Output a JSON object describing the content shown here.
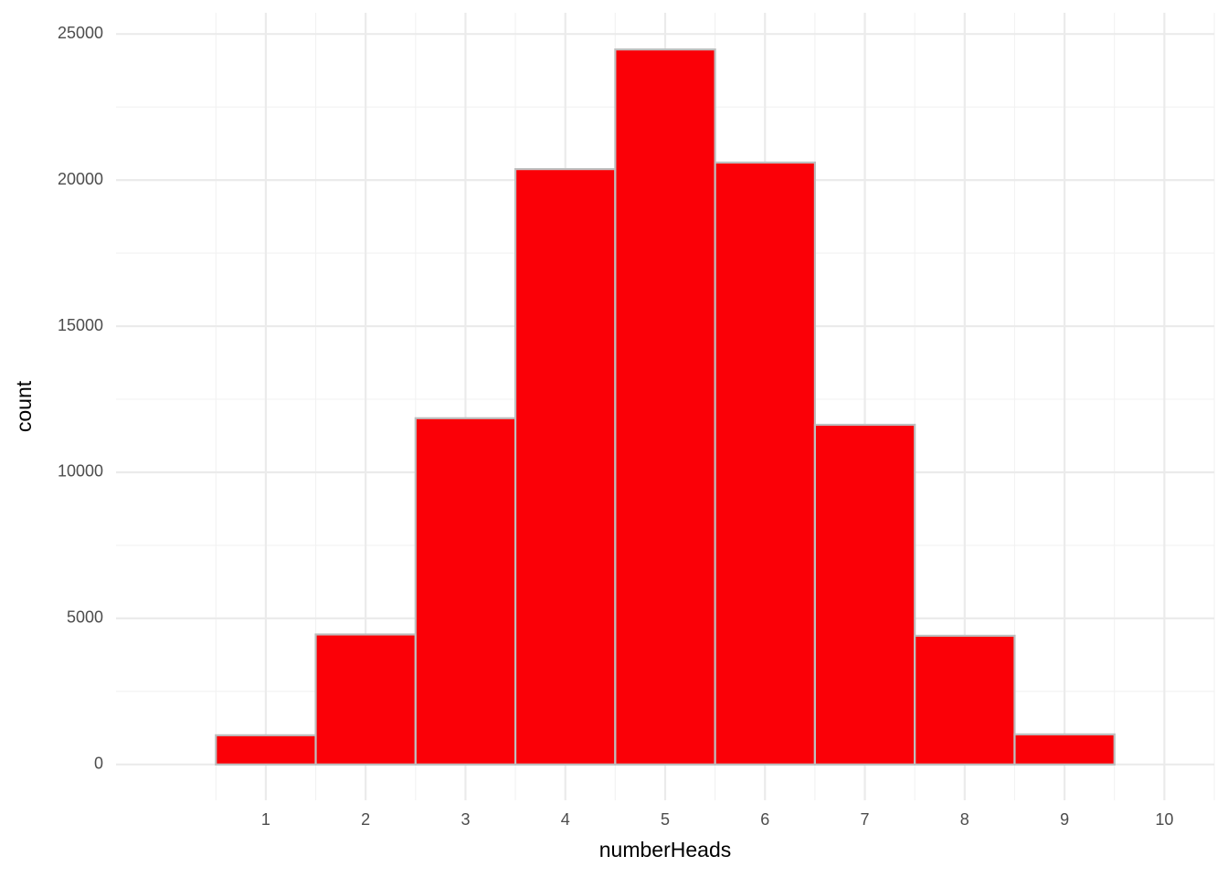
{
  "chart_data": {
    "type": "histogram",
    "x_label": "numberHeads",
    "y_label": "count",
    "bins": [
      0.5,
      1.5,
      2.5,
      3.5,
      4.5,
      5.5,
      6.5,
      7.5,
      8.5,
      9.5
    ],
    "values": [
      1000,
      4450,
      11850,
      20375,
      24470,
      20600,
      11625,
      4405,
      1030
    ],
    "color": "#fb0007",
    "edge_color": "#bebebe",
    "xlim": [
      -0.5,
      10.5
    ],
    "xticks": [
      1,
      2,
      3,
      4,
      5,
      6,
      7,
      8,
      9,
      10
    ],
    "ylim": [
      -1225,
      25725
    ],
    "yticks": [
      0,
      5000,
      10000,
      15000,
      20000,
      25000
    ],
    "grid": true
  }
}
